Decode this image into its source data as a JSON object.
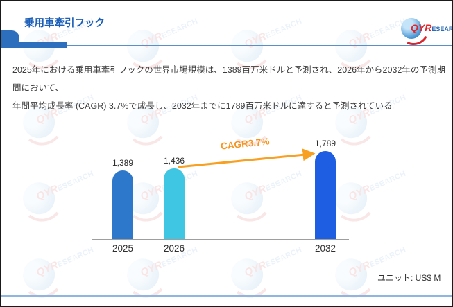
{
  "header": {
    "title": "乗用車牽引フック",
    "logo": {
      "primary": "QYR",
      "secondary": "ESEARCH"
    }
  },
  "watermark": {
    "primary": "QYR",
    "secondary": "ESEARCH"
  },
  "summary": {
    "line1": "2025年における乗用車牽引フックの世界市場規模は、1389百万米ドルと予測され、2026年から2032年の予測期間において、",
    "line2": "年間平均成長率 (CAGR) 3.7%で成長し、2032年までに1789百万米ドルに達すると予測されている。"
  },
  "chart_data": {
    "type": "bar",
    "categories": [
      "2025",
      "2026",
      "2032"
    ],
    "values": [
      1389,
      1436,
      1789
    ],
    "bars": [
      {
        "category": "2025",
        "value": 1389,
        "label": "1,389",
        "color": "#2E78CC"
      },
      {
        "category": "2026",
        "value": 1436,
        "label": "1,436",
        "color": "#3FC6E2"
      },
      {
        "category": "2032",
        "value": 1789,
        "label": "1,789",
        "color": "#1E5EE2"
      }
    ],
    "annotation": "CAGR3.7%",
    "annotation_color": "#F7941E",
    "arrow_color": "#F7A021",
    "unit_label": "ユニット: US$ M",
    "xlabel": "",
    "ylabel": "",
    "ylim": [
      0,
      1900
    ],
    "grid": false,
    "legend": "none"
  },
  "theme": {
    "accent_blue": "#2E6FBD",
    "header_divider_blue": "#5B8FC9",
    "footer_line_blue": "#8FB6E0",
    "axis_gray": "#9E9E9E",
    "title_blue": "#1C5FB8",
    "body_text": "#3C3C3C"
  }
}
